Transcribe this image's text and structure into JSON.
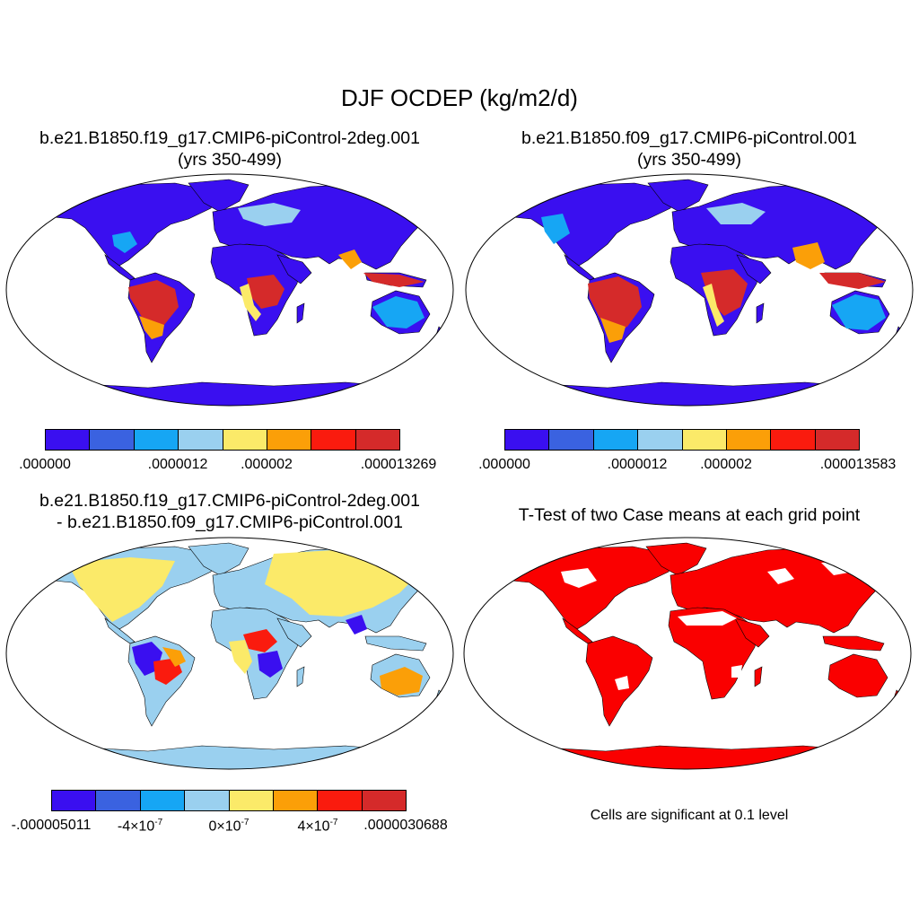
{
  "title": "DJF OCDEP (kg/m2/d)",
  "panels": {
    "top_left": {
      "title_line1": "b.e21.B1850.f19_g17.CMIP6-piControl-2deg.001",
      "title_line2": "(yrs 350-499)",
      "colorbar_labels": [
        ".000000",
        ".0000012",
        ".000002",
        ".000013269"
      ]
    },
    "top_right": {
      "title_line1": "b.e21.B1850.f09_g17.CMIP6-piControl.001",
      "title_line2": "(yrs 350-499)",
      "colorbar_labels": [
        ".000000",
        ".0000012",
        ".000002",
        ".000013583"
      ]
    },
    "bottom_left": {
      "title_line1": "b.e21.B1850.f19_g17.CMIP6-piControl-2deg.001",
      "title_line2": "- b.e21.B1850.f09_g17.CMIP6-piControl.001",
      "colorbar_labels": [
        "-.000005011",
        "-4×10",
        "0×10",
        "4×10",
        ".0000030688"
      ],
      "exponent": "-7"
    },
    "bottom_right": {
      "title_line1": "T-Test of two Case means at each grid point",
      "note": "Cells are significant at 0.1 level"
    }
  },
  "colors": {
    "levels": [
      "#3a0ff0",
      "#3a62e0",
      "#16a6f4",
      "#9ad0ef",
      "#fbea69",
      "#fb9f08",
      "#fa1b0e",
      "#d52a2a"
    ],
    "land_base": "#3a0ff0",
    "significant": "#fa0000",
    "map_outline": "#000000"
  }
}
